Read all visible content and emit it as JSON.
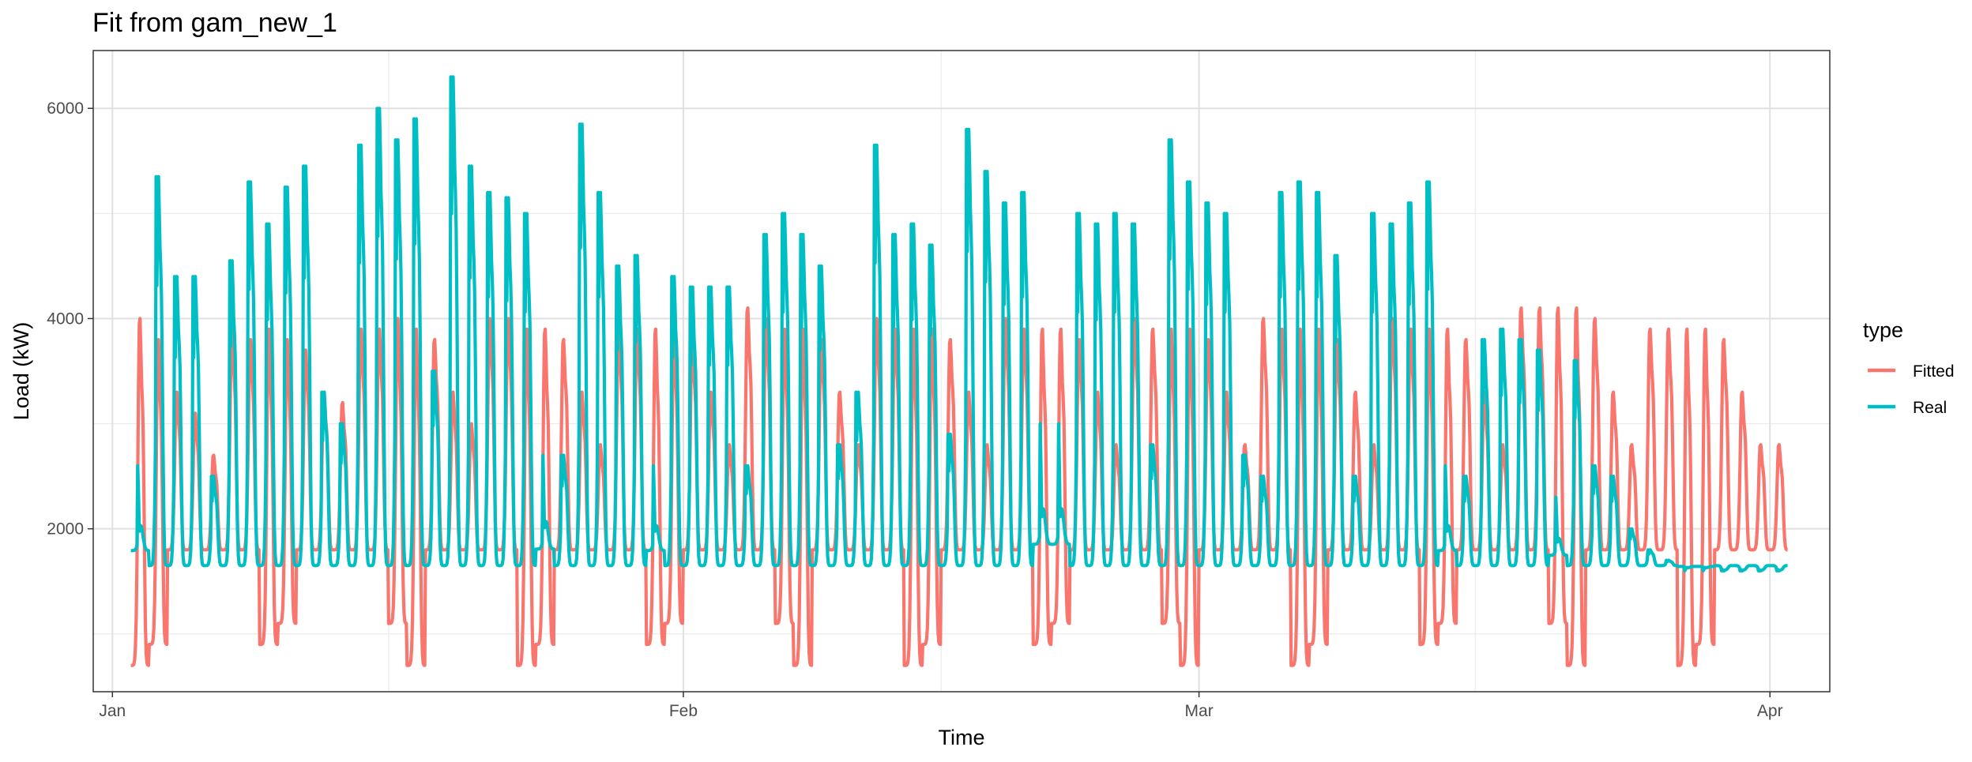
{
  "chart_data": {
    "type": "line",
    "title": "Fit from gam_new_1",
    "xlabel": "Time",
    "ylabel": "Load (kW)",
    "x_range": [
      "2020-12-30T23:00",
      "2021-04-04T06:00"
    ],
    "ylim": [
      450,
      6550
    ],
    "x_ticks": [
      {
        "date": "2021-01-01",
        "label": "Jan"
      },
      {
        "date": "2021-02-01",
        "label": "Feb"
      },
      {
        "date": "2021-03-01",
        "label": "Mar"
      },
      {
        "date": "2021-04-01",
        "label": "Apr"
      }
    ],
    "x_minor_gridlines": [
      "2021-01-16",
      "2021-02-15",
      "2021-03-16"
    ],
    "y_ticks": [
      2000,
      4000,
      6000
    ],
    "y_minor_gridlines": [
      1000,
      3000,
      5000
    ],
    "grid": true,
    "x_start": "2021-01-01T00:00",
    "step_hours": 1,
    "legend": {
      "title": "type",
      "position": "right",
      "entries": [
        "Fitted",
        "Real"
      ]
    },
    "series": [
      {
        "name": "Fitted",
        "color": "#F8766D"
      },
      {
        "name": "Real",
        "color": "#00BFC4"
      }
    ],
    "daily_peaks": {
      "description_of_values": "approximate daily maximum load (kW) per series for each day from 2021-01-02 to 2021-04-01",
      "start_date": "2021-01-02",
      "Fitted": [
        4000,
        3800,
        3300,
        3100,
        2700,
        3900,
        3800,
        3900,
        3800,
        3700,
        3300,
        3200,
        3900,
        3900,
        4000,
        3900,
        3800,
        3300,
        3000,
        4000,
        4000,
        3900,
        3900,
        3800,
        3300,
        2800,
        3900,
        3900,
        3900,
        3900,
        3800,
        3300,
        2800,
        4100,
        4000,
        3900,
        3900,
        3800,
        3300,
        2800,
        4000,
        3900,
        3900,
        3900,
        3800,
        3300,
        2800,
        4000,
        3900,
        3900,
        3900,
        3800,
        3300,
        2800,
        4000,
        3900,
        3900,
        3900,
        3800,
        3300,
        2800,
        4000,
        3900,
        3900,
        3900,
        3800,
        3300,
        2800,
        4000,
        3900,
        3900,
        3900,
        3800,
        3300,
        2800,
        4100,
        4100,
        4100,
        4100,
        4000,
        3300,
        2800,
        3900,
        3900,
        3900,
        3900,
        3800,
        3300,
        2800,
        2800
      ],
      "Real": [
        2600,
        5350,
        4400,
        4400,
        2500,
        4550,
        5300,
        4900,
        5250,
        5450,
        3300,
        3000,
        5650,
        6000,
        5700,
        5900,
        3500,
        6300,
        5450,
        5200,
        5150,
        5000,
        2700,
        2700,
        5850,
        5200,
        4500,
        4600,
        2600,
        4400,
        4300,
        4300,
        4300,
        2600,
        4800,
        5000,
        4800,
        4500,
        2800,
        3300,
        5650,
        4800,
        4900,
        4700,
        2900,
        5800,
        5400,
        5100,
        5200,
        3000,
        3000,
        5000,
        4900,
        5000,
        4900,
        2800,
        5700,
        5300,
        5100,
        5000,
        2700,
        2500,
        5200,
        5300,
        5200,
        4600,
        2500,
        5000,
        4900,
        5100,
        5300,
        2600,
        2500,
        3800,
        3900,
        3800,
        3700,
        2300,
        3600,
        2600,
        2500,
        2000,
        1800,
        1700,
        1600,
        1600,
        1600,
        1600,
        1600,
        1600
      ]
    }
  }
}
